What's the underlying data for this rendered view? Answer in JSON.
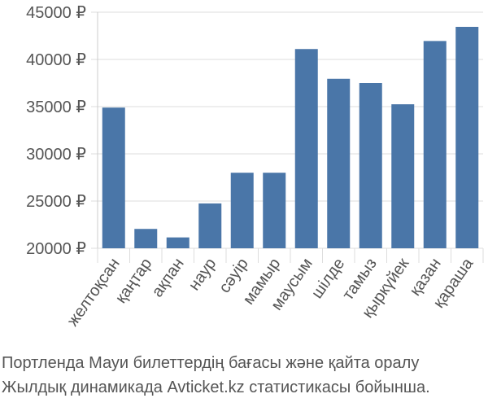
{
  "chart_data": {
    "type": "bar",
    "categories": [
      "желтоқсан",
      "қаңтар",
      "ақпан",
      "наур",
      "сәуір",
      "мамыр",
      "маусым",
      "шілде",
      "тамыз",
      "қыркүйек",
      "қазан",
      "қараша"
    ],
    "values": [
      34900,
      22050,
      21150,
      24750,
      28000,
      28000,
      41100,
      37950,
      37500,
      35250,
      41950,
      43450
    ],
    "yticks": [
      "20000 ₽",
      "25000 ₽",
      "30000 ₽",
      "35000 ₽",
      "40000 ₽",
      "45000 ₽"
    ],
    "ytick_values": [
      20000,
      25000,
      30000,
      35000,
      40000,
      45000
    ],
    "ylim": [
      20000,
      45000
    ],
    "grid": true,
    "bar_color": "#4a76a8"
  },
  "caption": {
    "line1": "Портленда Мауи билеттердің бағасы және қайта оралу",
    "line2": "Жылдық динамикада Avticket.kz статистикасы бойынша."
  }
}
